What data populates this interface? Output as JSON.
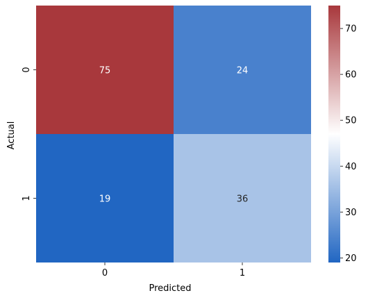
{
  "chart_data": {
    "type": "heatmap",
    "xlabel": "Predicted",
    "ylabel": "Actual",
    "x_categories": [
      "0",
      "1"
    ],
    "y_categories": [
      "0",
      "1"
    ],
    "values": [
      [
        75,
        24
      ],
      [
        19,
        36
      ]
    ],
    "annotations": [
      [
        "75",
        "24"
      ],
      [
        "19",
        "36"
      ]
    ],
    "colorbar": {
      "range": [
        19,
        75
      ],
      "ticks": [
        20,
        30,
        40,
        50,
        60,
        70
      ],
      "colors": [
        "#2166c2",
        "#ffffff",
        "#a8383c"
      ]
    }
  }
}
